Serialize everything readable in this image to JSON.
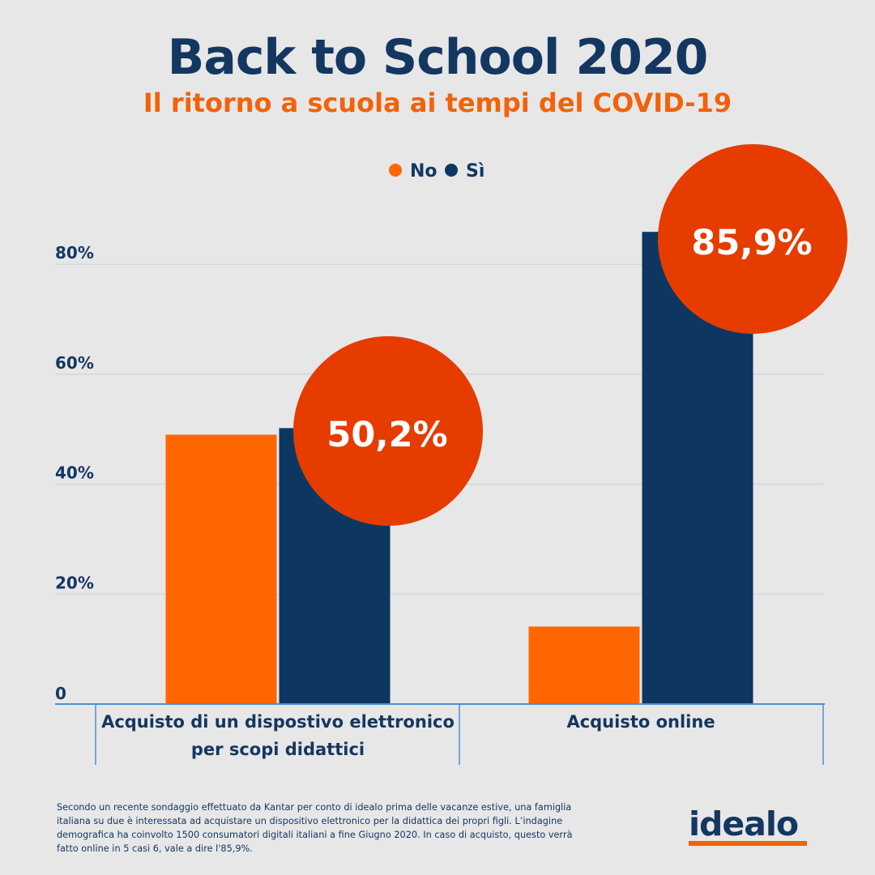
{
  "header": {
    "title": "Back to School 2020",
    "subtitle": "Il ritorno a scuola ai tempi del COVID-19"
  },
  "colors": {
    "no": "#ff6600",
    "si": "#0d3760",
    "highlight": "#e63c00",
    "accent": "#f2620a",
    "grid": "#c3d0dd",
    "axis": "#4a8fd4",
    "text": "#133761"
  },
  "chart_data": {
    "type": "bar",
    "title": "Back to School 2020",
    "categories": [
      "Acquisto di un dispostivo elettronico\nper scopi didattici",
      "Acquisto online"
    ],
    "series": [
      {
        "name": "No",
        "values": [
          49.0,
          14.1
        ]
      },
      {
        "name": "Sì",
        "values": [
          50.2,
          85.9
        ]
      }
    ],
    "highlights": [
      "50,2%",
      "85,9%"
    ],
    "yticks": [
      "0",
      "20%",
      "40%",
      "60%",
      "80%"
    ],
    "ylim": [
      0,
      90
    ],
    "xlabel": "",
    "ylabel": "",
    "grid": true,
    "legend": "top-center"
  },
  "footer": {
    "note": "Secondo un recente sondaggio effettuato da Kantar per conto di idealo prima delle vacanze estive, una famiglia italiana su due è interessata ad acquistare un dispositivo elettronico per la didattica dei propri figli. L’indagine demografica ha coinvolto 1500 consumatori digitali italiani a fine Giugno 2020. In caso di acquisto, questo verrà fatto online in 5 casi 6, vale a dire l'85,9%.",
    "logo": "idealo"
  }
}
